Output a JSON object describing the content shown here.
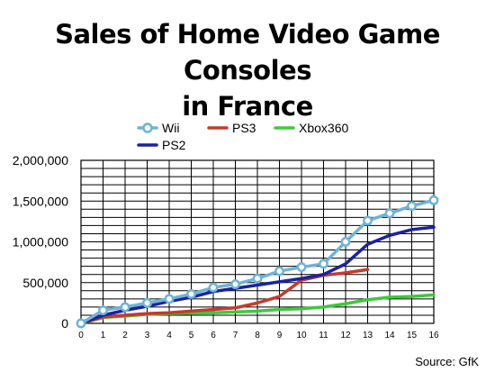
{
  "chart_data": {
    "type": "line",
    "title_line1": "Sales of Home Video Game Consoles",
    "title_line2": "in France",
    "source": "Source: GfK",
    "xlabel": "",
    "ylabel": "",
    "x": [
      0,
      1,
      2,
      3,
      4,
      5,
      6,
      7,
      8,
      9,
      10,
      11,
      12,
      13,
      14,
      15,
      16
    ],
    "xlim": [
      0,
      16
    ],
    "ylim": [
      0,
      2000000
    ],
    "y_ticks": [
      0,
      500000,
      1000000,
      1500000,
      2000000
    ],
    "y_tick_labels": [
      "0",
      "500,000",
      "1,000,000",
      "1,500,000",
      "2,000,000"
    ],
    "x_tick_labels": [
      "0",
      "1",
      "2",
      "3",
      "4",
      "5",
      "6",
      "7",
      "8",
      "9",
      "10",
      "11",
      "12",
      "13",
      "14",
      "15",
      "16"
    ],
    "grid": true,
    "legend_position": "top",
    "series": [
      {
        "name": "Wii",
        "color": "#6fb3d6",
        "marker": "circle",
        "values": [
          0,
          160000,
          200000,
          250000,
          300000,
          360000,
          440000,
          480000,
          550000,
          640000,
          690000,
          730000,
          1000000,
          1260000,
          1350000,
          1440000,
          1510000
        ]
      },
      {
        "name": "PS3",
        "color": "#c63a2e",
        "marker": "none",
        "values": [
          0,
          80000,
          100000,
          120000,
          130000,
          150000,
          170000,
          190000,
          250000,
          330000,
          530000,
          590000,
          620000,
          660000,
          null,
          null,
          null
        ]
      },
      {
        "name": "Xbox360",
        "color": "#3ec83e",
        "marker": "none",
        "values": [
          0,
          70000,
          90000,
          110000,
          120000,
          125000,
          130000,
          140000,
          150000,
          170000,
          180000,
          200000,
          240000,
          290000,
          320000,
          330000,
          350000
        ]
      },
      {
        "name": "PS2",
        "color": "#1b22a0",
        "marker": "none",
        "values": [
          0,
          100000,
          160000,
          210000,
          270000,
          320000,
          390000,
          430000,
          470000,
          510000,
          550000,
          600000,
          730000,
          970000,
          1080000,
          1150000,
          1180000
        ]
      }
    ]
  }
}
